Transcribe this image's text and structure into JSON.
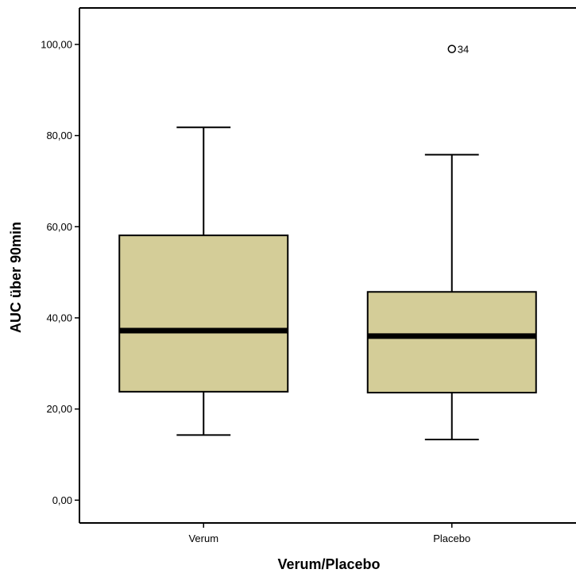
{
  "chart_data": {
    "type": "box",
    "xlabel": "Verum/Placebo",
    "ylabel": "AUC über 90min",
    "ylim": [
      -5,
      108
    ],
    "yticks": [
      0,
      20,
      40,
      60,
      80,
      100
    ],
    "ytick_labels": [
      "0,00",
      "20,00",
      "40,00",
      "60,00",
      "80,00",
      "100,00"
    ],
    "grid": false,
    "box_color": "#d4cd98",
    "categories": [
      "Verum",
      "Placebo"
    ],
    "boxes": [
      {
        "category": "Verum",
        "whisker_low": 14.3,
        "q1": 23.8,
        "median": 37.2,
        "q3": 58.1,
        "whisker_high": 81.8,
        "outliers": []
      },
      {
        "category": "Placebo",
        "whisker_low": 13.3,
        "q1": 23.6,
        "median": 36.0,
        "q3": 45.7,
        "whisker_high": 75.8,
        "outliers": [
          {
            "value": 99.0,
            "label": "34"
          }
        ]
      }
    ]
  }
}
